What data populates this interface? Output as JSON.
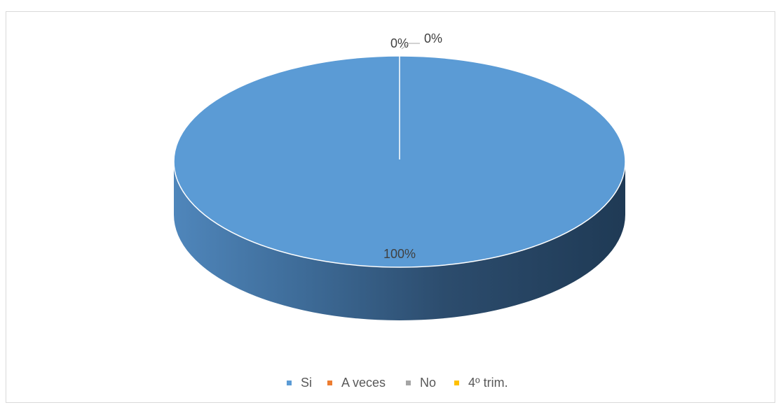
{
  "chart_data": {
    "type": "pie",
    "style": "3d",
    "categories": [
      "Si",
      "A veces",
      "No",
      "4º trim."
    ],
    "values": [
      100,
      0,
      0,
      0
    ],
    "data_labels": [
      "100%",
      "0%",
      "0%",
      "0%"
    ],
    "colors": [
      "#5b9bd5",
      "#ed7d31",
      "#a5a5a5",
      "#ffc000"
    ],
    "legend_position": "bottom"
  }
}
